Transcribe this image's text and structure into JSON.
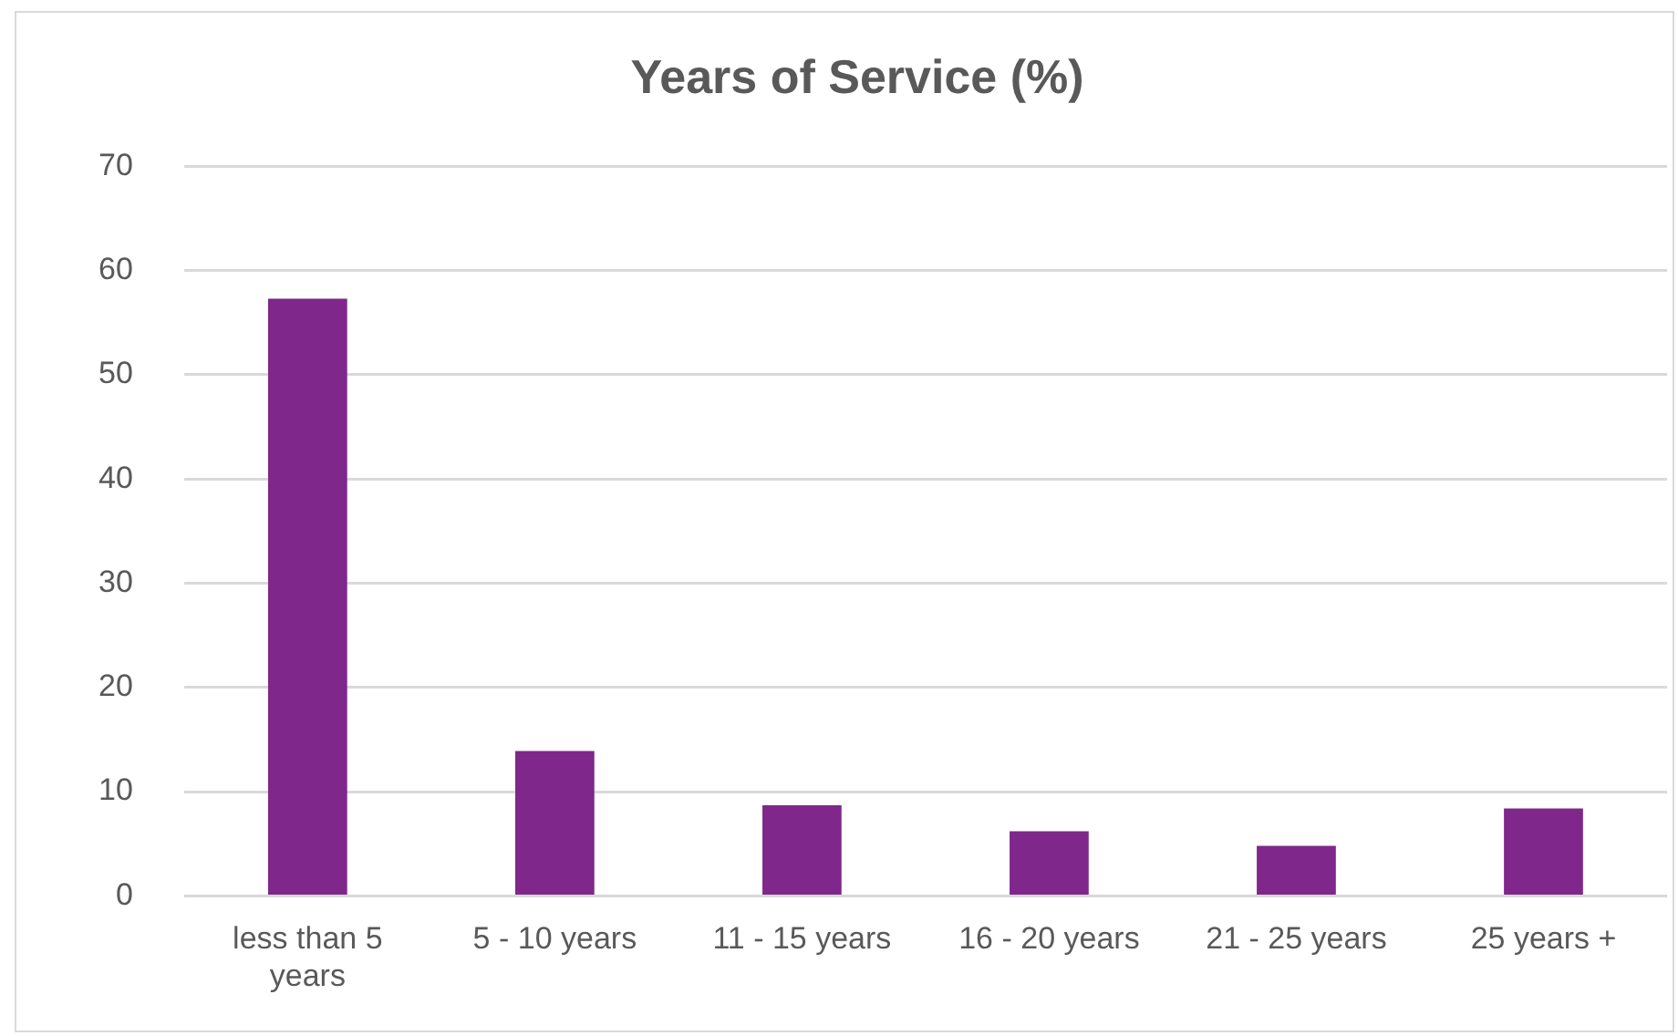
{
  "chart_data": {
    "type": "bar",
    "title": "Years of Service (%)",
    "categories": [
      "less than 5 years",
      "5 - 10 years",
      "11 - 15 years",
      "16 - 20 years",
      "21 - 25 years",
      "25 years +"
    ],
    "values": [
      57.3,
      13.9,
      8.7,
      6.2,
      4.8,
      8.4
    ],
    "color": "#7f278b",
    "ylim": [
      0,
      70
    ],
    "yticks": [
      0,
      10,
      20,
      30,
      40,
      50,
      60,
      70
    ],
    "grid": "y",
    "legend": false
  }
}
